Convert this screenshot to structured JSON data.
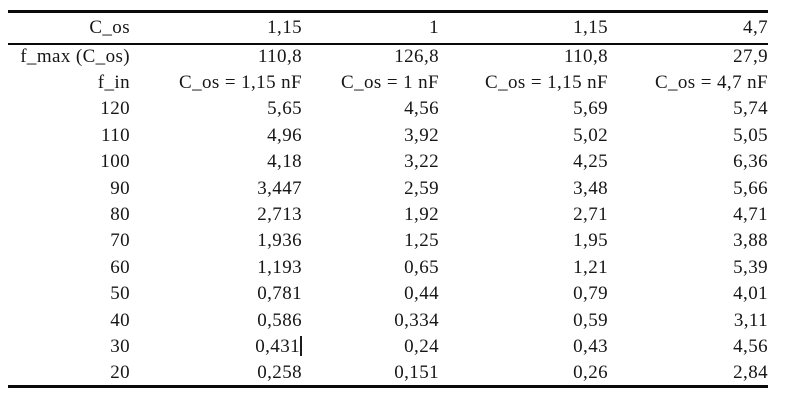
{
  "table": {
    "header_row": {
      "label": "C_os",
      "values": [
        "1,15",
        "1",
        "1,15",
        "4,7"
      ]
    },
    "rows": [
      {
        "label": "f_max (C_os)",
        "values": [
          "110,8",
          "126,8",
          "110,8",
          "27,9"
        ]
      },
      {
        "label": "f_in",
        "values": [
          "C_os = 1,15 nF",
          "C_os = 1 nF",
          "C_os = 1,15 nF",
          "C_os = 4,7 nF"
        ]
      },
      {
        "label": "120",
        "values": [
          "5,65",
          "4,56",
          "5,69",
          "5,74"
        ]
      },
      {
        "label": "110",
        "values": [
          "4,96",
          "3,92",
          "5,02",
          "5,05"
        ]
      },
      {
        "label": "100",
        "values": [
          "4,18",
          "3,22",
          "4,25",
          "6,36"
        ]
      },
      {
        "label": "90",
        "values": [
          "3,447",
          "2,59",
          "3,48",
          "5,66"
        ]
      },
      {
        "label": "80",
        "values": [
          "2,713",
          "1,92",
          "2,71",
          "4,71"
        ]
      },
      {
        "label": "70",
        "values": [
          "1,936",
          "1,25",
          "1,95",
          "3,88"
        ]
      },
      {
        "label": "60",
        "values": [
          "1,193",
          "0,65",
          "1,21",
          "5,39"
        ]
      },
      {
        "label": "50",
        "values": [
          "0,781",
          "0,44",
          "0,79",
          "4,01"
        ]
      },
      {
        "label": "40",
        "values": [
          "0,586",
          "0,334",
          "0,59",
          "3,11"
        ]
      },
      {
        "label": "30",
        "values": [
          "0,431",
          "0,24",
          "0,43",
          "4,56"
        ],
        "caret_after_col": 0
      },
      {
        "label": "20",
        "values": [
          "0,258",
          "0,151",
          "0,26",
          "2,84"
        ]
      }
    ]
  },
  "colors": {
    "text": "#161616",
    "rule": "#0a0a0a",
    "caret": "#1b1b1b",
    "background": "#ffffff"
  }
}
